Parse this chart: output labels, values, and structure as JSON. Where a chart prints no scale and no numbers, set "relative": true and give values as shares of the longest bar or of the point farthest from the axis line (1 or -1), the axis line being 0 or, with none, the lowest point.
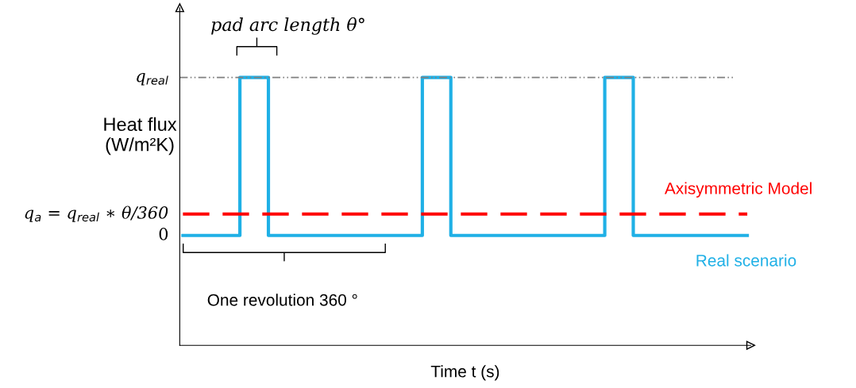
{
  "chart_data": {
    "type": "step",
    "relative": true,
    "xlabel": "Time t (s)",
    "ylabel": "Heat flux\n(W/m²K)",
    "tick_labels": false,
    "categories": [
      null,
      null,
      null,
      null,
      null,
      null,
      null,
      null,
      null,
      null,
      null,
      null,
      null,
      null,
      null,
      null,
      null,
      null,
      null,
      null,
      null,
      null,
      null,
      null,
      null,
      null,
      null,
      null,
      null,
      null,
      null,
      null,
      null,
      null,
      null,
      null,
      null,
      null,
      null,
      null,
      null,
      null,
      null,
      null,
      null,
      null,
      null,
      null,
      null,
      null,
      null,
      null,
      null,
      null,
      null,
      null,
      null,
      null,
      null,
      null,
      null,
      null,
      null,
      null,
      null,
      null,
      null,
      null,
      null,
      null,
      null,
      null,
      null,
      null,
      null,
      null,
      null,
      null,
      null,
      null,
      null,
      null,
      null,
      null,
      null,
      null,
      null,
      null,
      null,
      null,
      null,
      null,
      null,
      null,
      null,
      null,
      null,
      null,
      null,
      null
    ],
    "series": [
      {
        "name": "Real scenario",
        "color": "#1fb0e6",
        "line_style": "solid",
        "values": [
          0.41,
          0.41,
          0.41,
          0.41,
          0.41,
          0.41,
          0.41,
          0.41,
          0.41,
          0.41,
          1,
          1,
          1,
          1,
          1,
          0.41,
          0.41,
          0.41,
          0.41,
          0.41,
          0.41,
          0.41,
          0.41,
          0.41,
          0.41,
          0.41,
          0.41,
          0.41,
          0.41,
          0.41,
          0.41,
          0.41,
          0.41,
          0.41,
          0.41,
          0.41,
          0.41,
          0.41,
          0.41,
          0.41,
          0.41,
          0.41,
          1,
          1,
          1,
          1,
          1,
          0.41,
          0.41,
          0.41,
          0.41,
          0.41,
          0.41,
          0.41,
          0.41,
          0.41,
          0.41,
          0.41,
          0.41,
          0.41,
          0.41,
          0.41,
          0.41,
          0.41,
          0.41,
          0.41,
          0.41,
          0.41,
          0.41,
          0.41,
          0.41,
          0.41,
          0.41,
          0.41,
          1,
          1,
          1,
          1,
          1,
          0.41,
          0.41,
          0.41,
          0.41,
          0.41,
          0.41,
          0.41,
          0.41,
          0.41,
          0.41,
          0.41,
          0.41,
          0.41,
          0.41,
          0.41,
          0.41,
          0.41,
          0.41,
          0.41,
          0.41,
          0.41
        ]
      },
      {
        "name": "Axisymmetric Model",
        "type": "line",
        "color": "#ff0000",
        "line_style": "dashed",
        "values": [
          0.49,
          0.49,
          0.49,
          0.49,
          0.49,
          0.49,
          0.49,
          0.49,
          0.49,
          0.49,
          0.49,
          0.49,
          0.49,
          0.49,
          0.49,
          0.49,
          0.49,
          0.49,
          0.49,
          0.49,
          0.49,
          0.49,
          0.49,
          0.49,
          0.49,
          0.49,
          0.49,
          0.49,
          0.49,
          0.49,
          0.49,
          0.49,
          0.49,
          0.49,
          0.49,
          0.49,
          0.49,
          0.49,
          0.49,
          0.49,
          0.49,
          0.49,
          0.49,
          0.49,
          0.49,
          0.49,
          0.49,
          0.49,
          0.49,
          0.49,
          0.49,
          0.49,
          0.49,
          0.49,
          0.49,
          0.49,
          0.49,
          0.49,
          0.49,
          0.49,
          0.49,
          0.49,
          0.49,
          0.49,
          0.49,
          0.49,
          0.49,
          0.49,
          0.49,
          0.49,
          0.49,
          0.49,
          0.49,
          0.49,
          0.49,
          0.49,
          0.49,
          0.49,
          0.49,
          0.49,
          0.49,
          0.49,
          0.49,
          0.49,
          0.49,
          0.49,
          0.49,
          0.49,
          0.49,
          0.49,
          0.49,
          0.49,
          0.49,
          0.49,
          0.49,
          0.49,
          0.49,
          0.49,
          0.49,
          0.49
        ]
      }
    ],
    "ref_lines": [
      {
        "axis": "y",
        "value": 1,
        "label": "q$_{real}$",
        "color": "#808080",
        "line_style": "dashdot"
      }
    ],
    "annotations": [
      "q$_{a}$ = q$_{real}$ ∗ θ/360",
      "0",
      "pad arc length θ°",
      "One revolution 360 °"
    ]
  }
}
